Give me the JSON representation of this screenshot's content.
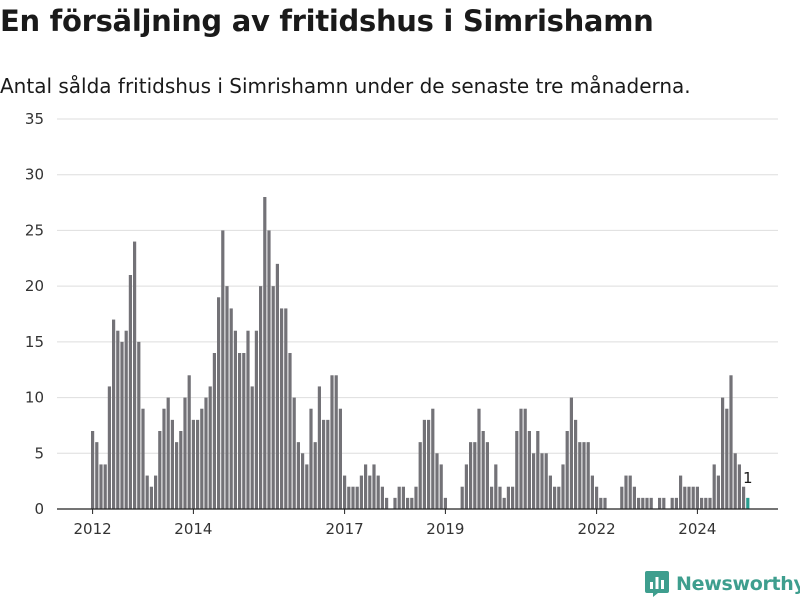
{
  "title": "En försäljning av fritidshus i Simrishamn",
  "subtitle": "Antal sålda fritidshus i Simrishamn under de senaste tre månaderna.",
  "brand": "Newsworthy",
  "colors": {
    "bar": "#737277",
    "highlight": "#2a9d8f",
    "grid": "#dedede",
    "brand": "#3e9e8e"
  },
  "chart_data": {
    "type": "bar",
    "title": "En försäljning av fritidshus i Simrishamn",
    "subtitle": "Antal sålda fritidshus i Simrishamn under de senaste tre månaderna.",
    "xlabel": "",
    "ylabel": "",
    "ylim": [
      0,
      35
    ],
    "yticks": [
      0,
      5,
      10,
      15,
      20,
      25,
      30,
      35
    ],
    "grid": true,
    "x_start": "2012-01",
    "x_end": "2024-10",
    "x_ticks": [
      "2012",
      "2014",
      "2017",
      "2019",
      "2022",
      "2024"
    ],
    "values": [
      7,
      6,
      4,
      4,
      11,
      17,
      16,
      15,
      16,
      21,
      24,
      15,
      9,
      3,
      2,
      3,
      7,
      9,
      10,
      8,
      6,
      7,
      10,
      12,
      8,
      8,
      9,
      10,
      11,
      14,
      19,
      25,
      20,
      18,
      16,
      14,
      14,
      16,
      11,
      16,
      20,
      28,
      25,
      20,
      22,
      18,
      18,
      14,
      10,
      6,
      5,
      4,
      9,
      6,
      11,
      8,
      8,
      12,
      12,
      9,
      3,
      2,
      2,
      2,
      3,
      4,
      3,
      4,
      3,
      2,
      1,
      0,
      1,
      2,
      2,
      1,
      1,
      2,
      6,
      8,
      8,
      9,
      5,
      4,
      1,
      0,
      0,
      0,
      2,
      4,
      6,
      6,
      9,
      7,
      6,
      2,
      4,
      2,
      1,
      2,
      2,
      7,
      9,
      9,
      7,
      5,
      7,
      5,
      5,
      3,
      2,
      2,
      4,
      7,
      10,
      8,
      6,
      6,
      6,
      3,
      2,
      1,
      1,
      0,
      0,
      0,
      2,
      3,
      3,
      2,
      1,
      1,
      1,
      1,
      0,
      1,
      1,
      0,
      1,
      1,
      3,
      2,
      2,
      2,
      2,
      1,
      1,
      1,
      4,
      3,
      10,
      9,
      12,
      5,
      4,
      2,
      1
    ],
    "highlight_label": "1"
  }
}
